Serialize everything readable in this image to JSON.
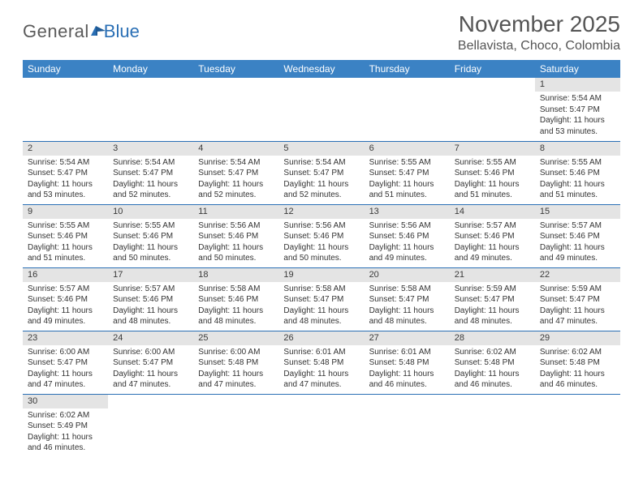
{
  "brand": {
    "part1": "General",
    "part2": "Blue"
  },
  "title": "November 2025",
  "location": "Bellavista, Choco, Colombia",
  "colors": {
    "header_bg": "#3b82c4",
    "header_text": "#ffffff",
    "border": "#2a6fb5",
    "daynum_bg": "#e4e4e4",
    "text": "#333333",
    "logo_gray": "#5a5a5a",
    "logo_blue": "#2a6fb5"
  },
  "weekdays": [
    "Sunday",
    "Monday",
    "Tuesday",
    "Wednesday",
    "Thursday",
    "Friday",
    "Saturday"
  ],
  "weeks": [
    [
      null,
      null,
      null,
      null,
      null,
      null,
      {
        "n": "1",
        "sunrise": "Sunrise: 5:54 AM",
        "sunset": "Sunset: 5:47 PM",
        "daylight": "Daylight: 11 hours and 53 minutes."
      }
    ],
    [
      {
        "n": "2",
        "sunrise": "Sunrise: 5:54 AM",
        "sunset": "Sunset: 5:47 PM",
        "daylight": "Daylight: 11 hours and 53 minutes."
      },
      {
        "n": "3",
        "sunrise": "Sunrise: 5:54 AM",
        "sunset": "Sunset: 5:47 PM",
        "daylight": "Daylight: 11 hours and 52 minutes."
      },
      {
        "n": "4",
        "sunrise": "Sunrise: 5:54 AM",
        "sunset": "Sunset: 5:47 PM",
        "daylight": "Daylight: 11 hours and 52 minutes."
      },
      {
        "n": "5",
        "sunrise": "Sunrise: 5:54 AM",
        "sunset": "Sunset: 5:47 PM",
        "daylight": "Daylight: 11 hours and 52 minutes."
      },
      {
        "n": "6",
        "sunrise": "Sunrise: 5:55 AM",
        "sunset": "Sunset: 5:47 PM",
        "daylight": "Daylight: 11 hours and 51 minutes."
      },
      {
        "n": "7",
        "sunrise": "Sunrise: 5:55 AM",
        "sunset": "Sunset: 5:46 PM",
        "daylight": "Daylight: 11 hours and 51 minutes."
      },
      {
        "n": "8",
        "sunrise": "Sunrise: 5:55 AM",
        "sunset": "Sunset: 5:46 PM",
        "daylight": "Daylight: 11 hours and 51 minutes."
      }
    ],
    [
      {
        "n": "9",
        "sunrise": "Sunrise: 5:55 AM",
        "sunset": "Sunset: 5:46 PM",
        "daylight": "Daylight: 11 hours and 51 minutes."
      },
      {
        "n": "10",
        "sunrise": "Sunrise: 5:55 AM",
        "sunset": "Sunset: 5:46 PM",
        "daylight": "Daylight: 11 hours and 50 minutes."
      },
      {
        "n": "11",
        "sunrise": "Sunrise: 5:56 AM",
        "sunset": "Sunset: 5:46 PM",
        "daylight": "Daylight: 11 hours and 50 minutes."
      },
      {
        "n": "12",
        "sunrise": "Sunrise: 5:56 AM",
        "sunset": "Sunset: 5:46 PM",
        "daylight": "Daylight: 11 hours and 50 minutes."
      },
      {
        "n": "13",
        "sunrise": "Sunrise: 5:56 AM",
        "sunset": "Sunset: 5:46 PM",
        "daylight": "Daylight: 11 hours and 49 minutes."
      },
      {
        "n": "14",
        "sunrise": "Sunrise: 5:57 AM",
        "sunset": "Sunset: 5:46 PM",
        "daylight": "Daylight: 11 hours and 49 minutes."
      },
      {
        "n": "15",
        "sunrise": "Sunrise: 5:57 AM",
        "sunset": "Sunset: 5:46 PM",
        "daylight": "Daylight: 11 hours and 49 minutes."
      }
    ],
    [
      {
        "n": "16",
        "sunrise": "Sunrise: 5:57 AM",
        "sunset": "Sunset: 5:46 PM",
        "daylight": "Daylight: 11 hours and 49 minutes."
      },
      {
        "n": "17",
        "sunrise": "Sunrise: 5:57 AM",
        "sunset": "Sunset: 5:46 PM",
        "daylight": "Daylight: 11 hours and 48 minutes."
      },
      {
        "n": "18",
        "sunrise": "Sunrise: 5:58 AM",
        "sunset": "Sunset: 5:46 PM",
        "daylight": "Daylight: 11 hours and 48 minutes."
      },
      {
        "n": "19",
        "sunrise": "Sunrise: 5:58 AM",
        "sunset": "Sunset: 5:47 PM",
        "daylight": "Daylight: 11 hours and 48 minutes."
      },
      {
        "n": "20",
        "sunrise": "Sunrise: 5:58 AM",
        "sunset": "Sunset: 5:47 PM",
        "daylight": "Daylight: 11 hours and 48 minutes."
      },
      {
        "n": "21",
        "sunrise": "Sunrise: 5:59 AM",
        "sunset": "Sunset: 5:47 PM",
        "daylight": "Daylight: 11 hours and 48 minutes."
      },
      {
        "n": "22",
        "sunrise": "Sunrise: 5:59 AM",
        "sunset": "Sunset: 5:47 PM",
        "daylight": "Daylight: 11 hours and 47 minutes."
      }
    ],
    [
      {
        "n": "23",
        "sunrise": "Sunrise: 6:00 AM",
        "sunset": "Sunset: 5:47 PM",
        "daylight": "Daylight: 11 hours and 47 minutes."
      },
      {
        "n": "24",
        "sunrise": "Sunrise: 6:00 AM",
        "sunset": "Sunset: 5:47 PM",
        "daylight": "Daylight: 11 hours and 47 minutes."
      },
      {
        "n": "25",
        "sunrise": "Sunrise: 6:00 AM",
        "sunset": "Sunset: 5:48 PM",
        "daylight": "Daylight: 11 hours and 47 minutes."
      },
      {
        "n": "26",
        "sunrise": "Sunrise: 6:01 AM",
        "sunset": "Sunset: 5:48 PM",
        "daylight": "Daylight: 11 hours and 47 minutes."
      },
      {
        "n": "27",
        "sunrise": "Sunrise: 6:01 AM",
        "sunset": "Sunset: 5:48 PM",
        "daylight": "Daylight: 11 hours and 46 minutes."
      },
      {
        "n": "28",
        "sunrise": "Sunrise: 6:02 AM",
        "sunset": "Sunset: 5:48 PM",
        "daylight": "Daylight: 11 hours and 46 minutes."
      },
      {
        "n": "29",
        "sunrise": "Sunrise: 6:02 AM",
        "sunset": "Sunset: 5:48 PM",
        "daylight": "Daylight: 11 hours and 46 minutes."
      }
    ],
    [
      {
        "n": "30",
        "sunrise": "Sunrise: 6:02 AM",
        "sunset": "Sunset: 5:49 PM",
        "daylight": "Daylight: 11 hours and 46 minutes."
      },
      null,
      null,
      null,
      null,
      null,
      null
    ]
  ]
}
